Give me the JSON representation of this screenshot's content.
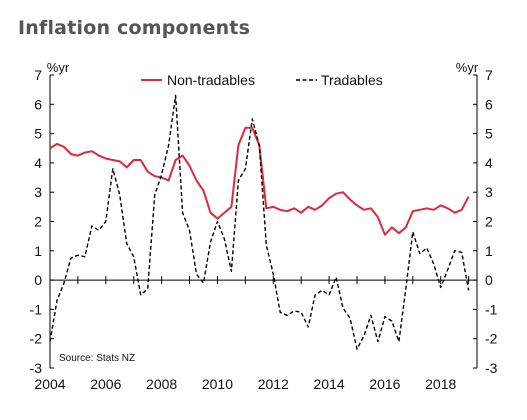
{
  "chart_data": {
    "type": "line",
    "title": "Inflation components",
    "unit_left": "%yr",
    "unit_right": "%yr",
    "source": "Source: Stats NZ",
    "ylim": [
      -3,
      7
    ],
    "y_ticks": [
      7,
      6,
      5,
      4,
      3,
      2,
      1,
      0,
      -1,
      -2,
      -3
    ],
    "xlim": [
      2004,
      2019.3
    ],
    "x_ticks": [
      2004,
      2006,
      2008,
      2010,
      2012,
      2014,
      2016,
      2018
    ],
    "legend": {
      "placement": "top-center"
    },
    "grid": false,
    "series": [
      {
        "name": "Non-tradables",
        "color": "#e0283c",
        "style": "solid",
        "x": [
          2004.0,
          2004.25,
          2004.5,
          2004.75,
          2005.0,
          2005.25,
          2005.5,
          2005.75,
          2006.0,
          2006.25,
          2006.5,
          2006.75,
          2007.0,
          2007.25,
          2007.5,
          2007.75,
          2008.0,
          2008.25,
          2008.5,
          2008.75,
          2009.0,
          2009.25,
          2009.5,
          2009.75,
          2010.0,
          2010.25,
          2010.5,
          2010.75,
          2011.0,
          2011.25,
          2011.5,
          2011.75,
          2012.0,
          2012.25,
          2012.5,
          2012.75,
          2013.0,
          2013.25,
          2013.5,
          2013.75,
          2014.0,
          2014.25,
          2014.5,
          2014.75,
          2015.0,
          2015.25,
          2015.5,
          2015.75,
          2016.0,
          2016.25,
          2016.5,
          2016.75,
          2017.0,
          2017.25,
          2017.5,
          2017.75,
          2018.0,
          2018.25,
          2018.5,
          2018.75,
          2019.0
        ],
        "values": [
          4.5,
          4.65,
          4.55,
          4.3,
          4.25,
          4.35,
          4.4,
          4.25,
          4.15,
          4.1,
          4.05,
          3.85,
          4.1,
          4.1,
          3.7,
          3.55,
          3.5,
          3.4,
          4.1,
          4.25,
          3.9,
          3.4,
          3.05,
          2.3,
          2.1,
          2.3,
          2.5,
          4.6,
          5.2,
          5.2,
          4.6,
          2.45,
          2.5,
          2.4,
          2.35,
          2.45,
          2.3,
          2.5,
          2.4,
          2.55,
          2.8,
          2.95,
          3.0,
          2.75,
          2.55,
          2.4,
          2.45,
          2.15,
          1.55,
          1.8,
          1.6,
          1.8,
          2.35,
          2.4,
          2.45,
          2.4,
          2.55,
          2.45,
          2.3,
          2.4,
          2.85
        ]
      },
      {
        "name": "Tradables",
        "color": "#000000",
        "style": "dashed",
        "x": [
          2004.0,
          2004.25,
          2004.5,
          2004.75,
          2005.0,
          2005.25,
          2005.5,
          2005.75,
          2006.0,
          2006.25,
          2006.5,
          2006.75,
          2007.0,
          2007.25,
          2007.5,
          2007.75,
          2008.0,
          2008.25,
          2008.5,
          2008.75,
          2009.0,
          2009.25,
          2009.5,
          2009.75,
          2010.0,
          2010.25,
          2010.5,
          2010.75,
          2011.0,
          2011.25,
          2011.5,
          2011.75,
          2012.0,
          2012.25,
          2012.5,
          2012.75,
          2013.0,
          2013.25,
          2013.5,
          2013.75,
          2014.0,
          2014.25,
          2014.5,
          2014.75,
          2015.0,
          2015.25,
          2015.5,
          2015.75,
          2016.0,
          2016.25,
          2016.5,
          2016.75,
          2017.0,
          2017.25,
          2017.5,
          2017.75,
          2018.0,
          2018.25,
          2018.5,
          2018.75,
          2019.0
        ],
        "values": [
          -2.1,
          -0.7,
          -0.1,
          0.75,
          0.85,
          0.8,
          1.85,
          1.7,
          2.0,
          3.8,
          2.9,
          1.25,
          0.8,
          -0.5,
          -0.3,
          2.9,
          3.6,
          4.6,
          6.3,
          2.3,
          1.7,
          0.2,
          -0.1,
          1.3,
          2.0,
          1.4,
          0.3,
          3.4,
          3.8,
          5.5,
          4.6,
          1.2,
          0.2,
          -1.1,
          -1.2,
          -1.05,
          -1.1,
          -1.6,
          -0.5,
          -0.35,
          -0.5,
          0.1,
          -0.95,
          -1.3,
          -2.35,
          -1.9,
          -1.2,
          -2.1,
          -1.25,
          -1.4,
          -2.1,
          -0.3,
          1.65,
          0.9,
          1.1,
          0.55,
          -0.25,
          0.35,
          1.0,
          0.95,
          -0.35
        ]
      }
    ]
  }
}
